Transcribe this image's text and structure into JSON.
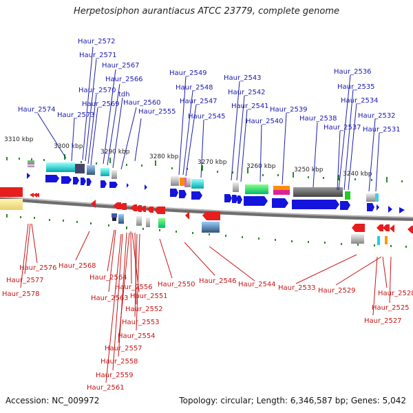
{
  "title": "Herpetosiphon aurantiacus ATCC 23779, complete genome",
  "accession": "Accession: NC_009972",
  "topology": "Topology: circular; Length: 6,346,587 bp; Genes: 5,042",
  "colors": {
    "forward_gene": "#1414dc",
    "reverse_gene": "#e61e1e",
    "top_label": "#1a1ab0",
    "bottom_label": "#c81414",
    "backbone": "#7a7a7a",
    "tick": "#228b22"
  },
  "kbp_ticks": [
    "3310 kbp",
    "3300 kbp",
    "3290 kbp",
    "3280 kbp",
    "3270 kbp",
    "3260 kbp",
    "3250 kbp",
    "3240 kbp"
  ],
  "top_genes": [
    "Haur_2572",
    "Haur_2571",
    "Haur_2567",
    "Haur_2566",
    "Haur_2570",
    "tdh",
    "Haur_2569",
    "Haur_2560",
    "Haur_2574",
    "Haur_2573",
    "Haur_2555",
    "Haur_2549",
    "Haur_2548",
    "Haur_2547",
    "Haur_2545",
    "Haur_2543",
    "Haur_2542",
    "Haur_2541",
    "Haur_2540",
    "Haur_2539",
    "Haur_2536",
    "Haur_2535",
    "Haur_2534",
    "Haur_2538",
    "Haur_2537",
    "Haur_2532",
    "Haur_2531"
  ],
  "bottom_genes": [
    "Haur_2576",
    "Haur_2577",
    "Haur_2578",
    "Haur_2568",
    "Haur_2564",
    "Haur_2563",
    "Haur_2556",
    "Haur_2551",
    "Haur_2552",
    "Haur_2553",
    "Haur_2554",
    "Haur_2557",
    "Haur_2558",
    "Haur_2559",
    "Haur_2561",
    "Haur_2550",
    "Haur_2546",
    "Haur_2544",
    "Haur_2533",
    "Haur_2529",
    "Haur_2528",
    "Haur_2525",
    "Haur_2527"
  ]
}
